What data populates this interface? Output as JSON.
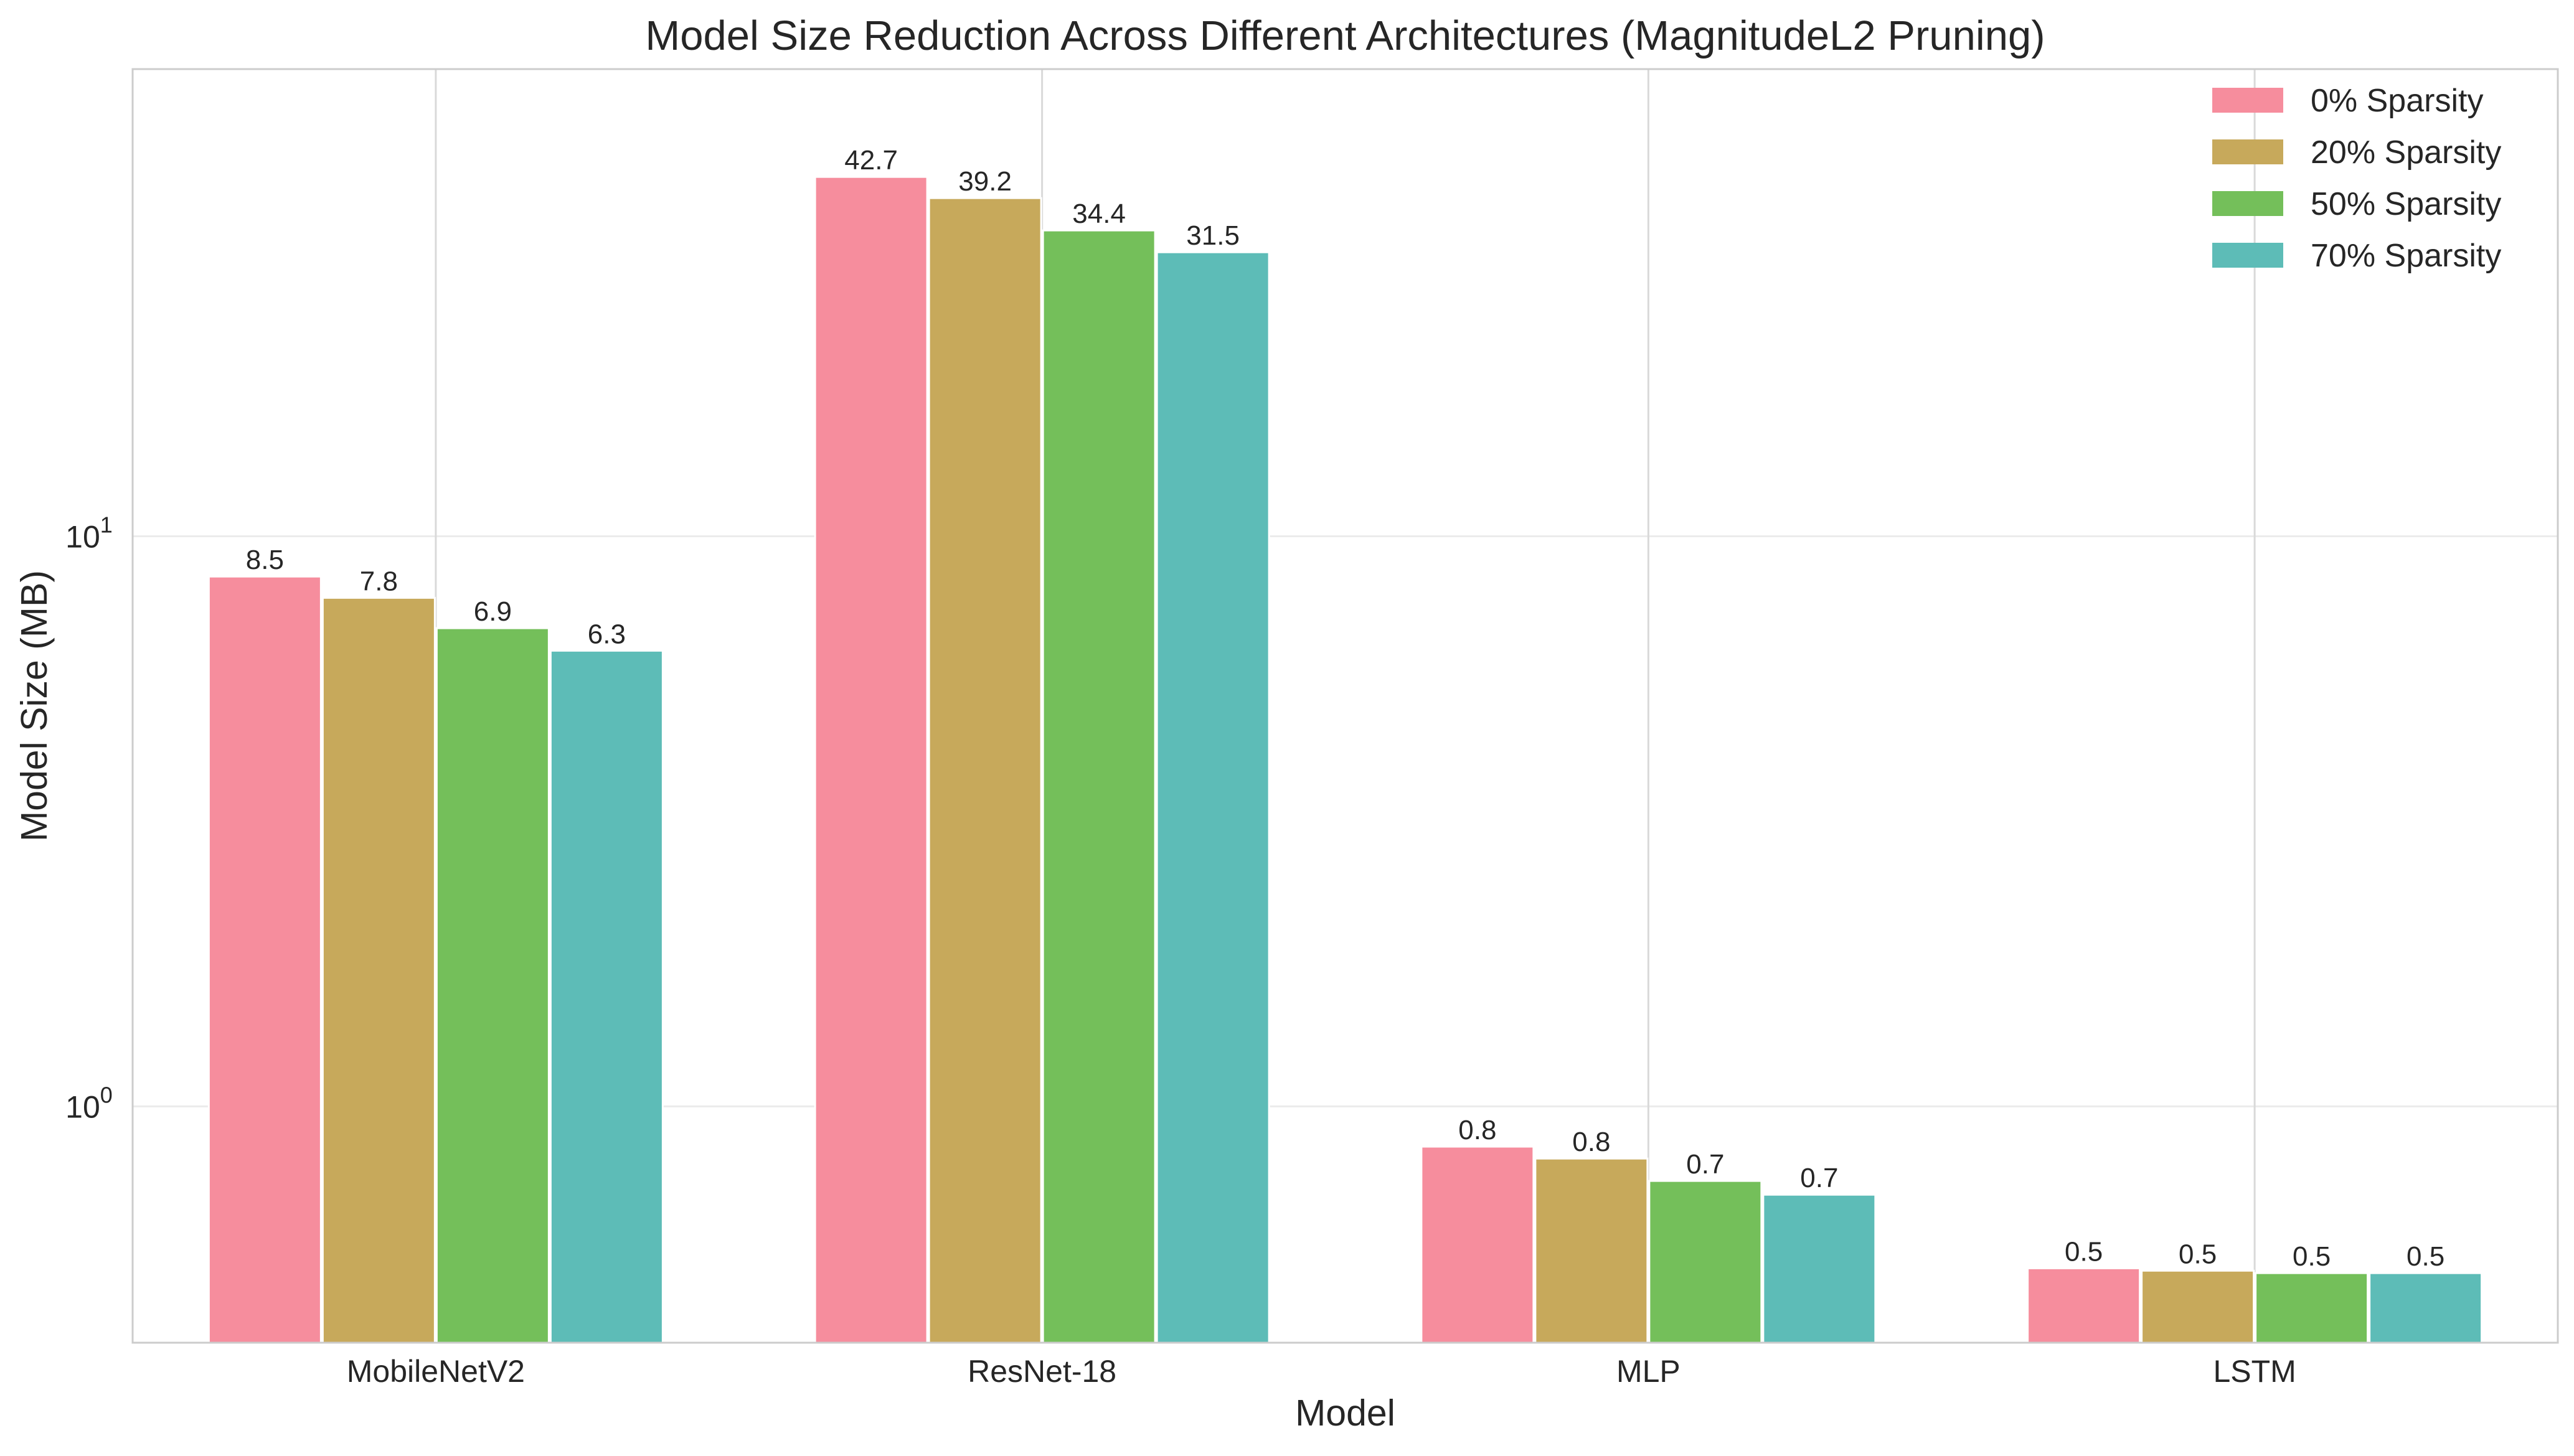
{
  "chart_data": {
    "type": "bar",
    "title": "Model Size Reduction Across Different Architectures (MagnitudeL2 Pruning)",
    "xlabel": "Model",
    "ylabel": "Model Size (MB)",
    "yscale": "log",
    "ylim": [
      0.385,
      66
    ],
    "y_ticks": [
      {
        "value": 1,
        "base": "10",
        "exp": "0"
      },
      {
        "value": 10,
        "base": "10",
        "exp": "1"
      }
    ],
    "grid": true,
    "legend_position": "top-right",
    "categories": [
      "MobileNetV2",
      "ResNet-18",
      "MLP",
      "LSTM"
    ],
    "series": [
      {
        "name": "0% Sparsity",
        "color": "#f68d9d",
        "values": [
          8.5,
          42.7,
          0.85,
          0.52
        ],
        "labels": [
          "8.5",
          "42.7",
          "0.8",
          "0.5"
        ]
      },
      {
        "name": "20% Sparsity",
        "color": "#c7a95b",
        "values": [
          7.8,
          39.2,
          0.81,
          0.515
        ],
        "labels": [
          "7.8",
          "39.2",
          "0.8",
          "0.5"
        ]
      },
      {
        "name": "50% Sparsity",
        "color": "#74bf5a",
        "values": [
          6.9,
          34.4,
          0.74,
          0.51
        ],
        "labels": [
          "6.9",
          "34.4",
          "0.7",
          "0.5"
        ]
      },
      {
        "name": "70% Sparsity",
        "color": "#5dbcb7",
        "values": [
          6.3,
          31.5,
          0.7,
          0.51
        ],
        "labels": [
          "6.3",
          "31.5",
          "0.7",
          "0.5"
        ]
      }
    ]
  }
}
